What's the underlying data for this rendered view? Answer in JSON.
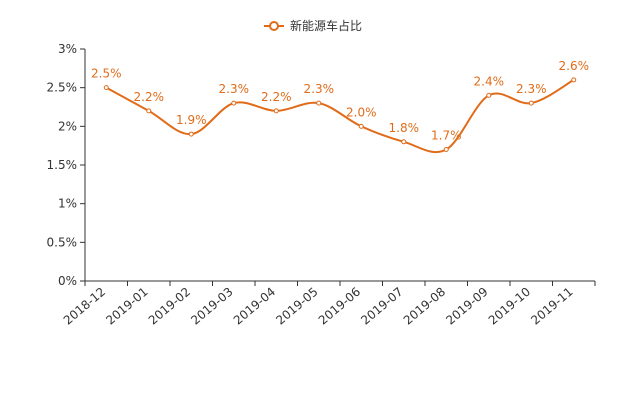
{
  "chart_data": {
    "type": "line",
    "legend": {
      "label": "新能源车占比",
      "placement": "top-center"
    },
    "categories": [
      "2018-12",
      "2019-01",
      "2019-02",
      "2019-03",
      "2019-04",
      "2019-05",
      "2019-06",
      "2019-07",
      "2019-08",
      "2019-09",
      "2019-10",
      "2019-11"
    ],
    "series": [
      {
        "name": "新能源车占比",
        "values": [
          2.5,
          2.2,
          1.9,
          2.3,
          2.2,
          2.3,
          2.0,
          1.8,
          1.7,
          2.4,
          2.3,
          2.6
        ],
        "labels": [
          "2.5%",
          "2.2%",
          "1.9%",
          "2.3%",
          "2.2%",
          "2.3%",
          "2.0%",
          "1.8%",
          "1.7%",
          "2.4%",
          "2.3%",
          "2.6%"
        ],
        "color": "#e06c1a",
        "smooth": true
      }
    ],
    "ylim": [
      0,
      3
    ],
    "yticks": [
      0,
      0.5,
      1,
      1.5,
      2,
      2.5,
      3
    ],
    "ytick_labels": [
      "0%",
      "0.5%",
      "1%",
      "1.5%",
      "2%",
      "2.5%",
      "3%"
    ],
    "grid": false,
    "xtick_rotation": "diagonal"
  }
}
